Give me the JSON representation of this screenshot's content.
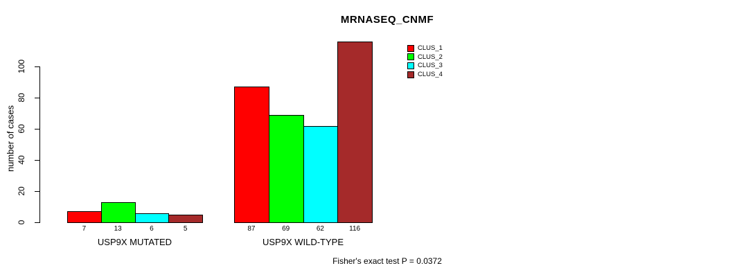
{
  "chart_data": {
    "type": "bar",
    "title": "MRNASEQ_CNMF",
    "ylabel": "number of cases",
    "xlabel": "",
    "yticks": [
      0,
      20,
      40,
      60,
      80,
      100
    ],
    "ylim": [
      0,
      116
    ],
    "grid": false,
    "legend_position": "top-right",
    "categories": [
      "USP9X MUTATED",
      "USP9X WILD-TYPE"
    ],
    "series": [
      {
        "name": "CLUS_1",
        "color": "#FF0000",
        "values": [
          7,
          87
        ]
      },
      {
        "name": "CLUS_2",
        "color": "#00FF00",
        "values": [
          13,
          69
        ]
      },
      {
        "name": "CLUS_3",
        "color": "#00FFFF",
        "values": [
          6,
          62
        ]
      },
      {
        "name": "CLUS_4",
        "color": "#A52A2A",
        "values": [
          5,
          116
        ]
      }
    ],
    "annotation": "Fisher's exact test P = 0.0372"
  }
}
